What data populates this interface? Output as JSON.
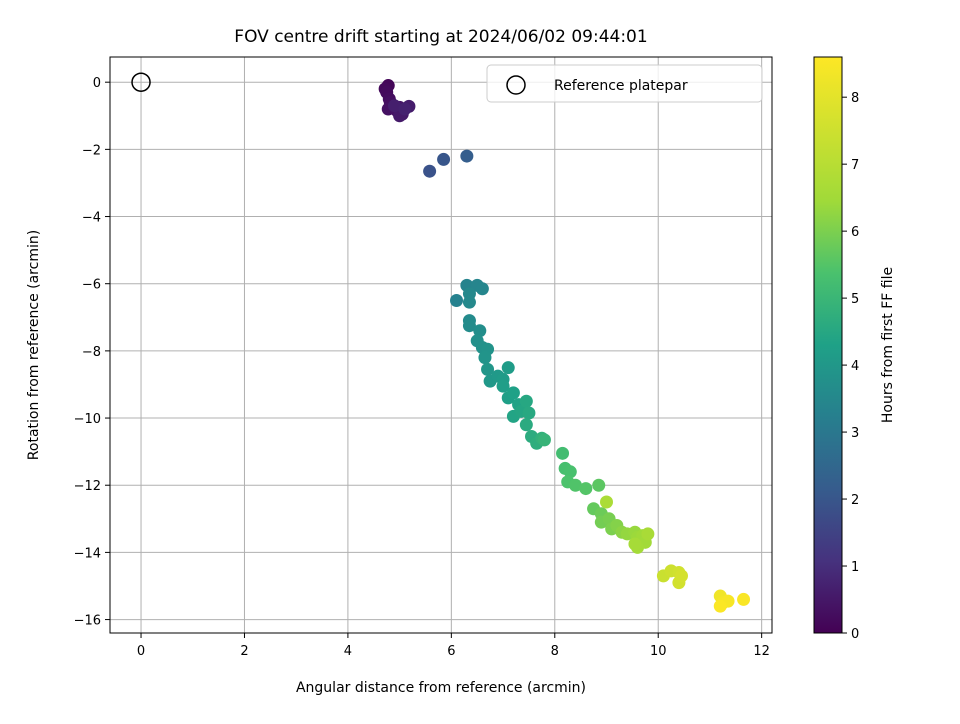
{
  "chart_data": {
    "type": "scatter",
    "title": "FOV centre drift starting at 2024/06/02 09:44:01",
    "xlabel": "Angular distance from reference (arcmin)",
    "ylabel": "Rotation from reference (arcmin)",
    "xlim": [
      -0.6,
      12.2
    ],
    "ylim": [
      -16.4,
      0.75
    ],
    "grid": true,
    "legend_position": "top-right",
    "x_ticks": [
      0,
      2,
      4,
      6,
      8,
      10,
      12
    ],
    "x_tick_labels": [
      "0",
      "2",
      "4",
      "6",
      "8",
      "10",
      "12"
    ],
    "y_ticks": [
      0,
      -2,
      -4,
      -6,
      -8,
      -10,
      -12,
      -14,
      -16
    ],
    "y_tick_labels": [
      "0",
      "−2",
      "−4",
      "−6",
      "−8",
      "−10",
      "−12",
      "−14",
      "−16"
    ],
    "colormap": "viridis",
    "colorbar": {
      "label": "Hours from first FF file",
      "range": [
        0,
        8.6
      ],
      "ticks": [
        0,
        1,
        2,
        3,
        4,
        5,
        6,
        7,
        8
      ],
      "tick_labels": [
        "0",
        "1",
        "2",
        "3",
        "4",
        "5",
        "6",
        "7",
        "8"
      ]
    },
    "reference_point": {
      "label": "Reference platepar",
      "x": 0,
      "y": 0
    },
    "points": [
      [
        4.78,
        -0.1,
        0.1
      ],
      [
        4.72,
        -0.2,
        0.15
      ],
      [
        4.75,
        -0.3,
        0.2
      ],
      [
        4.8,
        -0.5,
        0.25
      ],
      [
        4.82,
        -0.6,
        0.3
      ],
      [
        4.78,
        -0.8,
        0.35
      ],
      [
        4.95,
        -0.85,
        0.4
      ],
      [
        5.0,
        -0.75,
        0.45
      ],
      [
        5.05,
        -0.95,
        0.5
      ],
      [
        5.0,
        -1.0,
        0.55
      ],
      [
        5.18,
        -0.72,
        0.6
      ],
      [
        4.9,
        -0.7,
        0.65
      ],
      [
        5.1,
        -0.8,
        0.7
      ],
      [
        5.58,
        -2.65,
        1.9
      ],
      [
        5.85,
        -2.3,
        2.0
      ],
      [
        6.3,
        -2.2,
        2.2
      ],
      [
        6.1,
        -6.5,
        3.3
      ],
      [
        6.3,
        -6.05,
        3.35
      ],
      [
        6.5,
        -6.05,
        3.4
      ],
      [
        6.6,
        -6.15,
        3.45
      ],
      [
        6.35,
        -6.3,
        3.5
      ],
      [
        6.35,
        -6.55,
        3.55
      ],
      [
        6.35,
        -7.1,
        3.6
      ],
      [
        6.35,
        -7.25,
        3.65
      ],
      [
        6.55,
        -7.4,
        3.7
      ],
      [
        6.5,
        -7.7,
        3.75
      ],
      [
        6.6,
        -7.9,
        3.8
      ],
      [
        6.7,
        -7.95,
        3.85
      ],
      [
        6.65,
        -8.2,
        3.9
      ],
      [
        6.7,
        -8.55,
        3.95
      ],
      [
        6.75,
        -8.9,
        4.0
      ],
      [
        6.9,
        -8.75,
        4.05
      ],
      [
        7.0,
        -8.85,
        4.1
      ],
      [
        7.1,
        -8.5,
        4.15
      ],
      [
        7.0,
        -9.05,
        4.2
      ],
      [
        7.1,
        -9.4,
        4.25
      ],
      [
        7.2,
        -9.25,
        4.3
      ],
      [
        7.3,
        -9.6,
        4.35
      ],
      [
        7.2,
        -9.95,
        4.4
      ],
      [
        7.35,
        -9.8,
        4.45
      ],
      [
        7.45,
        -9.5,
        4.5
      ],
      [
        7.5,
        -9.85,
        4.55
      ],
      [
        7.45,
        -10.2,
        4.6
      ],
      [
        7.55,
        -10.55,
        4.65
      ],
      [
        7.65,
        -10.75,
        4.7
      ],
      [
        7.75,
        -10.6,
        4.8
      ],
      [
        7.8,
        -10.65,
        4.9
      ],
      [
        8.15,
        -11.05,
        5.2
      ],
      [
        8.2,
        -11.5,
        5.3
      ],
      [
        8.3,
        -11.6,
        5.35
      ],
      [
        8.25,
        -11.9,
        5.4
      ],
      [
        8.4,
        -12.0,
        5.45
      ],
      [
        8.6,
        -12.1,
        5.5
      ],
      [
        8.85,
        -12.0,
        5.6
      ],
      [
        8.75,
        -12.7,
        5.7
      ],
      [
        8.9,
        -12.85,
        5.8
      ],
      [
        8.9,
        -13.1,
        5.9
      ],
      [
        9.05,
        -13.0,
        5.95
      ],
      [
        9.1,
        -13.3,
        6.0
      ],
      [
        9.2,
        -13.2,
        6.1
      ],
      [
        9.3,
        -13.4,
        6.2
      ],
      [
        9.4,
        -13.45,
        6.3
      ],
      [
        9.55,
        -13.4,
        6.35
      ],
      [
        9.6,
        -13.55,
        6.4
      ],
      [
        9.7,
        -13.5,
        6.45
      ],
      [
        9.75,
        -13.7,
        6.5
      ],
      [
        9.6,
        -13.85,
        6.55
      ],
      [
        9.55,
        -13.75,
        6.6
      ],
      [
        9.8,
        -13.45,
        6.65
      ],
      [
        9.0,
        -12.5,
        6.7
      ],
      [
        10.1,
        -14.7,
        7.4
      ],
      [
        10.25,
        -14.55,
        7.5
      ],
      [
        10.4,
        -14.6,
        7.55
      ],
      [
        10.4,
        -14.9,
        7.6
      ],
      [
        10.45,
        -14.7,
        7.65
      ],
      [
        11.2,
        -15.3,
        8.3
      ],
      [
        11.25,
        -15.5,
        8.4
      ],
      [
        11.35,
        -15.45,
        8.45
      ],
      [
        11.65,
        -15.4,
        8.5
      ],
      [
        11.2,
        -15.6,
        8.55
      ]
    ]
  }
}
